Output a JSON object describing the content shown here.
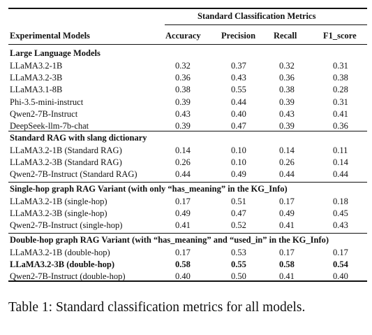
{
  "table": {
    "group_header": "Standard Classification Metrics",
    "columns": [
      "Experimental Models",
      "Accuracy",
      "Precision",
      "Recall",
      "F1_score"
    ],
    "sections": [
      {
        "title": "Large Language Models",
        "rows": [
          {
            "model": "LLaMA3.2-1B",
            "values": [
              "0.32",
              "0.37",
              "0.32",
              "0.31"
            ],
            "bold": false
          },
          {
            "model": "LLaMA3.2-3B",
            "values": [
              "0.36",
              "0.43",
              "0.36",
              "0.38"
            ],
            "bold": false
          },
          {
            "model": "LLaMA3.1-8B",
            "values": [
              "0.38",
              "0.55",
              "0.38",
              "0.28"
            ],
            "bold": false
          },
          {
            "model": "Phi-3.5-mini-instruct",
            "values": [
              "0.39",
              "0.44",
              "0.39",
              "0.31"
            ],
            "bold": false
          },
          {
            "model": "Qwen2-7B-Instruct",
            "values": [
              "0.43",
              "0.40",
              "0.43",
              "0.41"
            ],
            "bold": false
          },
          {
            "model": "DeepSeek-llm-7b-chat",
            "values": [
              "0.39",
              "0.47",
              "0.39",
              "0.36"
            ],
            "bold": false
          }
        ]
      },
      {
        "title": "Standard RAG with slang dictionary",
        "rows": [
          {
            "model": "LLaMA3.2-1B (Standard RAG)",
            "values": [
              "0.14",
              "0.10",
              "0.14",
              "0.11"
            ],
            "bold": false
          },
          {
            "model": "LLaMA3.2-3B (Standard RAG)",
            "values": [
              "0.26",
              "0.10",
              "0.26",
              "0.14"
            ],
            "bold": false
          },
          {
            "model": "Qwen2-7B-Instruct (Standard RAG)",
            "values": [
              "0.44",
              "0.49",
              "0.44",
              "0.44"
            ],
            "bold": false
          }
        ]
      },
      {
        "title": "Single-hop graph RAG Variant (with only “has_meaning” in the KG_Info)",
        "rows": [
          {
            "model": "LLaMA3.2-1B (single-hop)",
            "values": [
              "0.17",
              "0.51",
              "0.17",
              "0.18"
            ],
            "bold": false
          },
          {
            "model": "LLaMA3.2-3B (single-hop)",
            "values": [
              "0.49",
              "0.47",
              "0.49",
              "0.45"
            ],
            "bold": false
          },
          {
            "model": "Qwen2-7B-Instruct (single-hop)",
            "values": [
              "0.41",
              "0.52",
              "0.41",
              "0.43"
            ],
            "bold": false
          }
        ]
      },
      {
        "title": "Double-hop graph RAG Variant (with “has_meaning” and “used_in” in the KG_Info)",
        "rows": [
          {
            "model": "LLaMA3.2-1B (double-hop)",
            "values": [
              "0.17",
              "0.53",
              "0.17",
              "0.17"
            ],
            "bold": false
          },
          {
            "model": "LLaMA3.2-3B (double-hop)",
            "values": [
              "0.58",
              "0.55",
              "0.58",
              "0.54"
            ],
            "bold": true
          },
          {
            "model": "Qwen2-7B-Instruct (double-hop)",
            "values": [
              "0.40",
              "0.50",
              "0.41",
              "0.40"
            ],
            "bold": false
          }
        ]
      }
    ]
  },
  "caption": "Table 1: Standard classification metrics for all models."
}
